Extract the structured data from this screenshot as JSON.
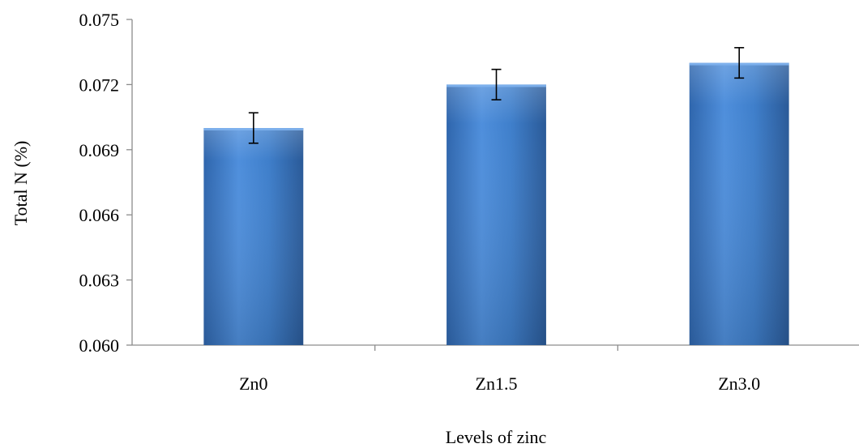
{
  "chart_data": {
    "type": "bar",
    "categories": [
      "Zn0",
      "Zn1.5",
      "Zn3.0"
    ],
    "values": [
      0.07,
      0.072,
      0.073
    ],
    "error": [
      0.0007,
      0.0007,
      0.0007
    ],
    "xlabel": "Levels of zinc",
    "ylabel": "Total N (%)",
    "ylim": [
      0.06,
      0.075
    ],
    "yticks": [
      "0.060",
      "0.063",
      "0.066",
      "0.069",
      "0.072",
      "0.075"
    ],
    "grid": false,
    "legend": "none",
    "colors": {
      "bar_light": "#6aa3e6",
      "bar_mid": "#3f7fcb",
      "bar_dark": "#2a5e9e"
    }
  }
}
